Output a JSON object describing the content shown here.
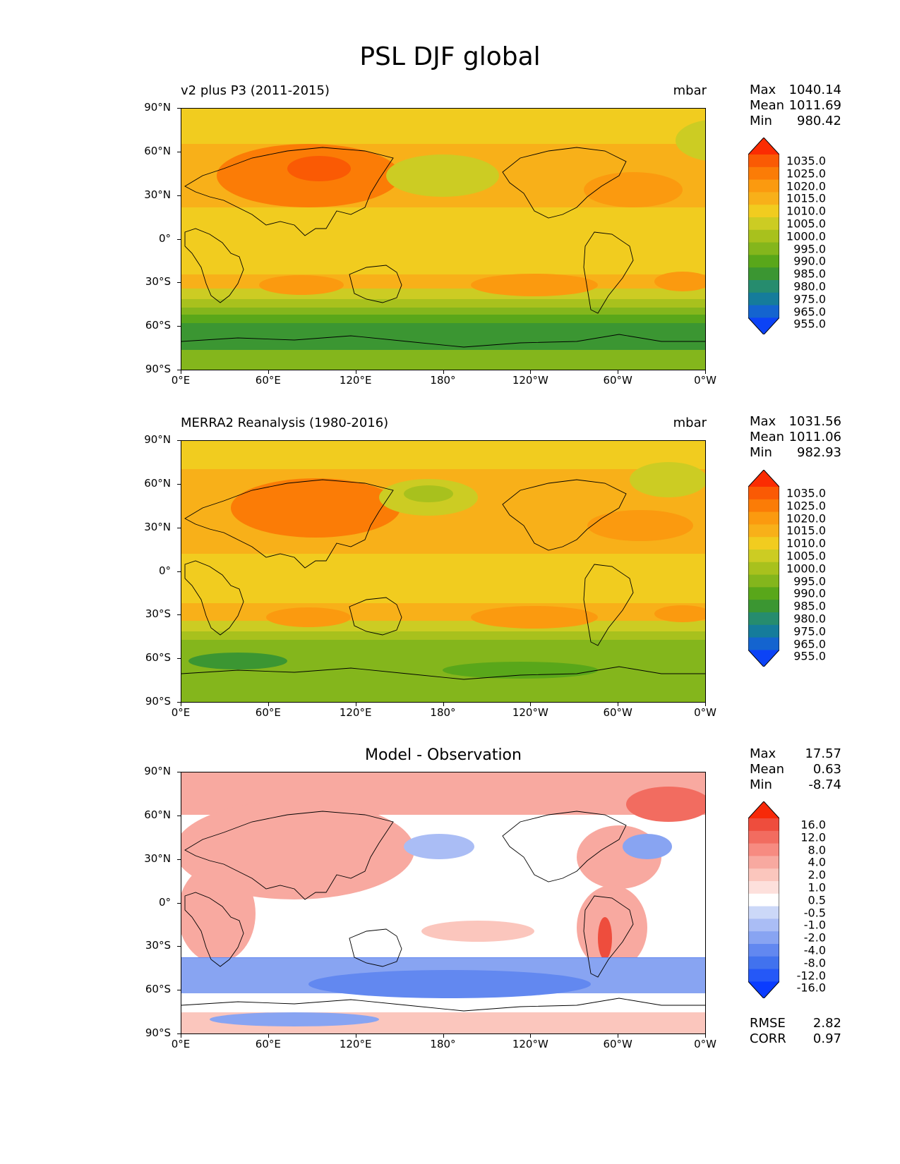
{
  "figure": {
    "title": "PSL DJF global"
  },
  "axes": {
    "lat_labels": [
      "90°N",
      "60°N",
      "30°N",
      "0°",
      "30°S",
      "60°S",
      "90°S"
    ],
    "lon_labels": [
      "0°E",
      "60°E",
      "120°E",
      "180°",
      "120°W",
      "60°W",
      "0°W"
    ]
  },
  "panels": [
    {
      "title_left": "v2 plus P3 (2011-2015)",
      "title_right": "mbar",
      "stats": {
        "max_label": "Max",
        "max": "1040.14",
        "mean_label": "Mean",
        "mean": "1011.69",
        "min_label": "Min",
        "min": "980.42"
      },
      "colorbar_labels": [
        "1035.0",
        "1025.0",
        "1020.0",
        "1015.0",
        "1010.0",
        "1005.0",
        "1000.0",
        "995.0",
        "990.0",
        "985.0",
        "980.0",
        "975.0",
        "965.0",
        "955.0"
      ]
    },
    {
      "title_left": "MERRA2 Reanalysis (1980-2016)",
      "title_right": "mbar",
      "stats": {
        "max_label": "Max",
        "max": "1031.56",
        "mean_label": "Mean",
        "mean": "1011.06",
        "min_label": "Min",
        "min": "982.93"
      },
      "colorbar_labels": [
        "1035.0",
        "1025.0",
        "1020.0",
        "1015.0",
        "1010.0",
        "1005.0",
        "1000.0",
        "995.0",
        "990.0",
        "985.0",
        "980.0",
        "975.0",
        "965.0",
        "955.0"
      ]
    },
    {
      "title_center": "Model - Observation",
      "stats": {
        "max_label": "Max",
        "max": "17.57",
        "mean_label": "Mean",
        "mean": "0.63",
        "min_label": "Min",
        "min": "-8.74"
      },
      "colorbar_labels": [
        "16.0",
        "12.0",
        "8.0",
        "4.0",
        "2.0",
        "1.0",
        "0.5",
        "-0.5",
        "-1.0",
        "-2.0",
        "-4.0",
        "-8.0",
        "-12.0",
        "-16.0"
      ],
      "rmse_label": "RMSE",
      "rmse": "2.82",
      "corr_label": "CORR",
      "corr": "0.97"
    }
  ],
  "colors": {
    "abs_scale": [
      "#0c43f6",
      "#1464cf",
      "#157c9b",
      "#268c6e",
      "#3b9632",
      "#59a71a",
      "#84b61c",
      "#a8c11d",
      "#cccc23",
      "#f1cc1f",
      "#f8b019",
      "#fb9a0f",
      "#fb7c06",
      "#fa5a04",
      "#fb2c02"
    ],
    "diff_scale": [
      "#0a3cff",
      "#2558f7",
      "#4172ee",
      "#6288f0",
      "#88a4f2",
      "#aabdf5",
      "#ccd8f8",
      "#ffffff",
      "#fde0dc",
      "#fbc6bd",
      "#f8a9a0",
      "#f78b81",
      "#f26c60",
      "#ee4d3d",
      "#f72909"
    ]
  }
}
